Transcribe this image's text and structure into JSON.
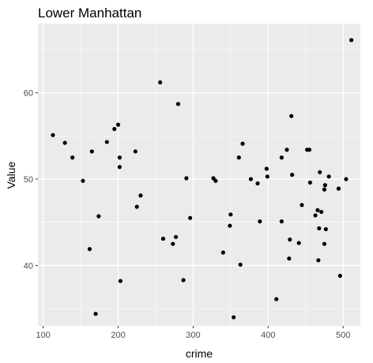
{
  "chart_data": {
    "type": "scatter",
    "title": "Lower Manhattan",
    "xlabel": "crime",
    "ylabel": "Value",
    "xlim": [
      93,
      523
    ],
    "ylim": [
      33,
      68
    ],
    "x_ticks": [
      100,
      200,
      300,
      400,
      500
    ],
    "y_ticks": [
      40,
      50,
      60
    ],
    "grid": true,
    "background_color": "#ebebeb",
    "gridline_color": "#ffffff",
    "point_color": "#000000",
    "points": [
      {
        "x": 113,
        "y": 55.1
      },
      {
        "x": 129,
        "y": 54.2
      },
      {
        "x": 139,
        "y": 52.5
      },
      {
        "x": 153,
        "y": 49.8
      },
      {
        "x": 162,
        "y": 41.9
      },
      {
        "x": 165,
        "y": 53.2
      },
      {
        "x": 170,
        "y": 34.4
      },
      {
        "x": 174,
        "y": 45.7
      },
      {
        "x": 185,
        "y": 54.3
      },
      {
        "x": 195,
        "y": 55.8
      },
      {
        "x": 200,
        "y": 56.3
      },
      {
        "x": 202,
        "y": 51.4
      },
      {
        "x": 202,
        "y": 52.5
      },
      {
        "x": 203,
        "y": 38.2
      },
      {
        "x": 223,
        "y": 53.2
      },
      {
        "x": 225,
        "y": 46.8
      },
      {
        "x": 230,
        "y": 48.1
      },
      {
        "x": 256,
        "y": 61.2
      },
      {
        "x": 260,
        "y": 43.1
      },
      {
        "x": 273,
        "y": 42.5
      },
      {
        "x": 277,
        "y": 43.3
      },
      {
        "x": 280,
        "y": 58.7
      },
      {
        "x": 287,
        "y": 38.3
      },
      {
        "x": 291,
        "y": 50.1
      },
      {
        "x": 296,
        "y": 45.5
      },
      {
        "x": 327,
        "y": 50.1
      },
      {
        "x": 330,
        "y": 49.8
      },
      {
        "x": 340,
        "y": 41.5
      },
      {
        "x": 349,
        "y": 44.6
      },
      {
        "x": 350,
        "y": 45.9
      },
      {
        "x": 354,
        "y": 34.0
      },
      {
        "x": 361,
        "y": 52.5
      },
      {
        "x": 363,
        "y": 40.1
      },
      {
        "x": 366,
        "y": 54.1
      },
      {
        "x": 377,
        "y": 50.0
      },
      {
        "x": 386,
        "y": 49.5
      },
      {
        "x": 389,
        "y": 45.1
      },
      {
        "x": 398,
        "y": 51.2
      },
      {
        "x": 399,
        "y": 50.3
      },
      {
        "x": 411,
        "y": 36.1
      },
      {
        "x": 418,
        "y": 52.5
      },
      {
        "x": 418,
        "y": 45.1
      },
      {
        "x": 425,
        "y": 53.4
      },
      {
        "x": 428,
        "y": 40.8
      },
      {
        "x": 429,
        "y": 43.0
      },
      {
        "x": 432,
        "y": 50.5
      },
      {
        "x": 431,
        "y": 57.3
      },
      {
        "x": 441,
        "y": 42.6
      },
      {
        "x": 445,
        "y": 47.0
      },
      {
        "x": 452,
        "y": 53.4
      },
      {
        "x": 455,
        "y": 53.4
      },
      {
        "x": 456,
        "y": 49.6
      },
      {
        "x": 463,
        "y": 45.8
      },
      {
        "x": 466,
        "y": 46.4
      },
      {
        "x": 467,
        "y": 40.6
      },
      {
        "x": 468,
        "y": 44.3
      },
      {
        "x": 469,
        "y": 50.8
      },
      {
        "x": 471,
        "y": 46.2
      },
      {
        "x": 475,
        "y": 48.8
      },
      {
        "x": 475,
        "y": 42.5
      },
      {
        "x": 476,
        "y": 49.3
      },
      {
        "x": 477,
        "y": 44.2
      },
      {
        "x": 481,
        "y": 50.3
      },
      {
        "x": 494,
        "y": 48.9
      },
      {
        "x": 496,
        "y": 38.8
      },
      {
        "x": 504,
        "y": 50.0
      },
      {
        "x": 511,
        "y": 66.1
      }
    ]
  }
}
